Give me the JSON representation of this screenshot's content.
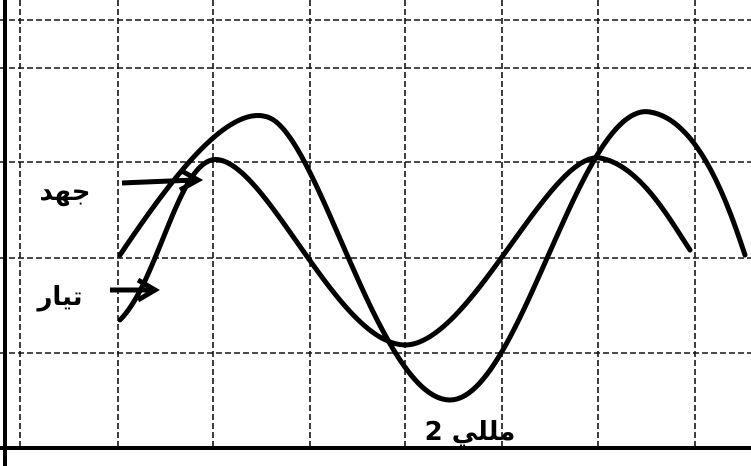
{
  "labels": {
    "upper": "جهد",
    "lower": "تيار",
    "bottom": "2 مللي"
  }
}
